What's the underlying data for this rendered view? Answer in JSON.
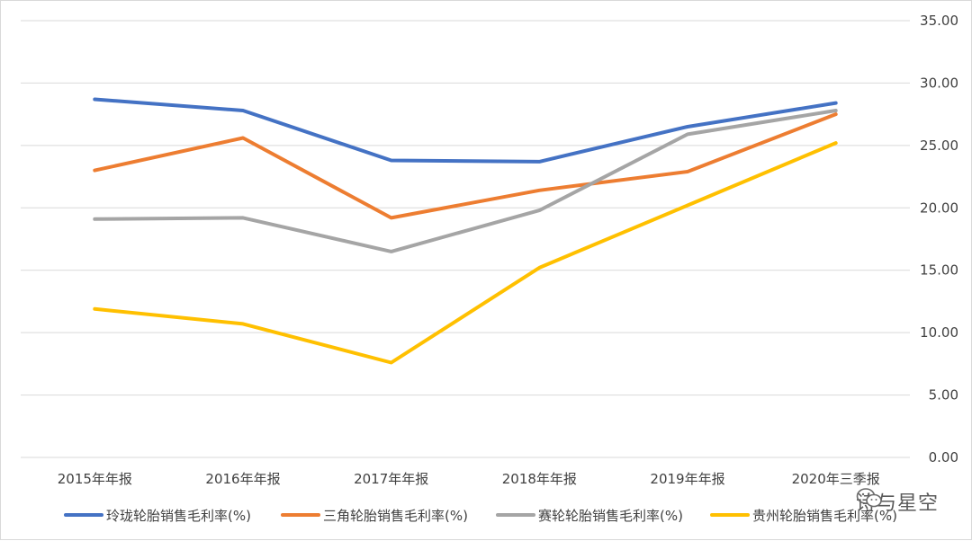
{
  "chart_data": {
    "type": "line",
    "categories": [
      "2015年年报",
      "2016年年报",
      "2017年年报",
      "2018年年报",
      "2019年年报",
      "2020年三季报"
    ],
    "ylim": [
      0,
      35
    ],
    "yticks": [
      "0.00",
      "5.00",
      "10.00",
      "15.00",
      "20.00",
      "25.00",
      "30.00",
      "35.00"
    ],
    "grid": true,
    "y_axis_side": "right",
    "legend_position": "bottom",
    "series": [
      {
        "name": "玲珑轮胎销售毛利率(%)",
        "color": "#4472C4",
        "values": [
          28.7,
          27.8,
          23.8,
          23.7,
          26.5,
          28.4
        ]
      },
      {
        "name": "三角轮胎销售毛利率(%)",
        "color": "#ED7D31",
        "values": [
          23.0,
          25.6,
          19.2,
          21.4,
          22.9,
          27.5
        ]
      },
      {
        "name": "赛轮轮胎销售毛利率(%)",
        "color": "#A5A5A5",
        "values": [
          19.1,
          19.2,
          16.5,
          19.8,
          25.9,
          27.8
        ]
      },
      {
        "name": "贵州轮胎销售毛利率(%)",
        "color": "#FFC000",
        "values": [
          11.9,
          10.7,
          7.6,
          15.2,
          20.2,
          25.2
        ]
      }
    ]
  },
  "watermark": {
    "text": "诗与星空",
    "icon": "wechat-icon"
  }
}
